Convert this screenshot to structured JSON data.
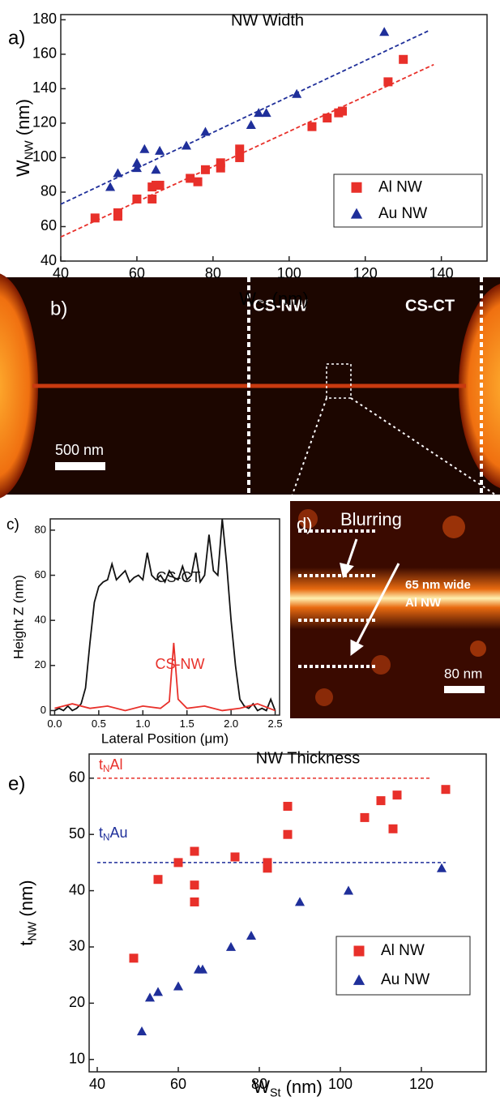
{
  "chart_data": [
    {
      "type": "scatter",
      "panel_label": "a)",
      "title": "NW Width",
      "xlabel": {
        "text": "W",
        "sub": "St",
        "rest": " (nm)"
      },
      "ylabel": {
        "text": "W",
        "sub": "NW",
        "rest": " (nm)"
      },
      "xlim": [
        40,
        152
      ],
      "ylim": [
        40,
        183
      ],
      "xticks": [
        40,
        60,
        80,
        100,
        120,
        140
      ],
      "yticks": [
        40,
        60,
        80,
        100,
        120,
        140,
        160,
        180
      ],
      "legend": "lower right",
      "grid": false,
      "series": [
        {
          "name": "Al NW",
          "color": "#e8302a",
          "marker": "square",
          "x": [
            49,
            55,
            55,
            60,
            64,
            64,
            65,
            66,
            74,
            76,
            78,
            82,
            82,
            87,
            87,
            106,
            110,
            113,
            114,
            126,
            130
          ],
          "values": [
            65,
            66,
            68,
            76,
            76,
            83,
            84,
            84,
            88,
            86,
            93,
            94,
            97,
            100,
            105,
            118,
            123,
            126,
            127,
            144,
            157
          ],
          "fit": {
            "x": [
              40,
              138
            ],
            "values": [
              54,
              154
            ]
          }
        },
        {
          "name": "Au NW",
          "color": "#1f2f9a",
          "marker": "triangle",
          "x": [
            53,
            55,
            60,
            60,
            62,
            65,
            66,
            73,
            78,
            90,
            92,
            94,
            102,
            125
          ],
          "values": [
            83,
            91,
            94,
            97,
            105,
            93,
            104,
            107,
            115,
            119,
            126,
            126,
            137,
            173
          ],
          "fit": {
            "x": [
              40,
              137
            ],
            "values": [
              73,
              174
            ]
          }
        }
      ]
    },
    {
      "type": "line",
      "panel_label": "c)",
      "xlabel": "Lateral Position (μm)",
      "ylabel": "Height Z (nm)",
      "xlim": [
        -0.05,
        2.55
      ],
      "ylim": [
        -2,
        85
      ],
      "xticks": [
        {
          "value": 0,
          "label": "0.0"
        },
        0.5,
        {
          "value": 1,
          "label": "1.0"
        },
        1.5,
        {
          "value": 2,
          "label": "2.0"
        },
        2.5
      ],
      "yticks": [
        0,
        20,
        40,
        60,
        80
      ],
      "legend": "none",
      "grid": false,
      "series": [
        {
          "name": "CS-CT",
          "color": "#111111",
          "x": [
            0,
            0.05,
            0.1,
            0.15,
            0.2,
            0.25,
            0.3,
            0.35,
            0.4,
            0.45,
            0.5,
            0.55,
            0.6,
            0.65,
            0.7,
            0.75,
            0.8,
            0.85,
            0.9,
            0.95,
            1,
            1.05,
            1.1,
            1.15,
            1.2,
            1.25,
            1.3,
            1.35,
            1.4,
            1.45,
            1.5,
            1.55,
            1.6,
            1.65,
            1.7,
            1.75,
            1.8,
            1.85,
            1.9,
            1.95,
            2,
            2.05,
            2.1,
            2.15,
            2.2,
            2.25,
            2.3,
            2.35,
            2.4,
            2.45,
            2.5
          ],
          "values": [
            0,
            1,
            0,
            2,
            0,
            1,
            3,
            10,
            30,
            48,
            55,
            57,
            58,
            65,
            58,
            60,
            62,
            57,
            59,
            60,
            58,
            70,
            60,
            58,
            60,
            57,
            62,
            59,
            58,
            64,
            58,
            60,
            70,
            57,
            60,
            78,
            62,
            60,
            85,
            65,
            40,
            20,
            5,
            2,
            1,
            3,
            0,
            1,
            0,
            5,
            0
          ]
        },
        {
          "name": "CS-NW",
          "color": "#e8302a",
          "x": [
            0,
            0.2,
            0.4,
            0.6,
            0.8,
            1,
            1.2,
            1.3,
            1.35,
            1.4,
            1.5,
            1.7,
            1.9,
            2.1,
            2.3,
            2.5
          ],
          "values": [
            1,
            3,
            1,
            2,
            0,
            2,
            1,
            4,
            30,
            5,
            1,
            2,
            0,
            1,
            3,
            0
          ]
        }
      ]
    },
    {
      "type": "scatter",
      "panel_label": "e)",
      "title": "NW Thickness",
      "xlabel": {
        "text": "W",
        "sub": "St",
        "rest": " (nm)"
      },
      "ylabel": {
        "text": "t",
        "sub": "NW",
        "rest": " (nm)"
      },
      "xlim": [
        38,
        136
      ],
      "ylim": [
        7.8,
        64.3
      ],
      "xticks": [
        40,
        60,
        80,
        100,
        120
      ],
      "yticks": [
        10,
        20,
        30,
        40,
        50,
        60
      ],
      "legend": "lower right",
      "grid": false,
      "reference_lines": [
        {
          "name": {
            "text": "t",
            "sub": "N",
            "rest": "Al"
          },
          "color": "#e8302a",
          "y": 60,
          "x": [
            40,
            122
          ]
        },
        {
          "name": {
            "text": "t",
            "sub": "N",
            "rest": "Au"
          },
          "color": "#1f2f9a",
          "y": 45,
          "x": [
            40,
            126
          ]
        }
      ],
      "series": [
        {
          "name": "Al NW",
          "color": "#e8302a",
          "marker": "square",
          "x": [
            49,
            55,
            60,
            64,
            64,
            64,
            74,
            82,
            82,
            87,
            87,
            106,
            110,
            113,
            114,
            126
          ],
          "values": [
            28,
            42,
            45,
            47,
            41,
            38,
            46,
            45,
            44,
            55,
            50,
            53,
            56,
            51,
            57,
            58
          ]
        },
        {
          "name": "Au NW",
          "color": "#1f2f9a",
          "marker": "triangle",
          "x": [
            51,
            53,
            55,
            60,
            65,
            66,
            73,
            78,
            90,
            102,
            125
          ],
          "values": [
            15,
            21,
            22,
            23,
            26,
            26,
            30,
            32,
            38,
            40,
            44
          ]
        }
      ]
    }
  ],
  "panels": {
    "b": {
      "label": "b)",
      "markers": [
        "CS-NW",
        "CS-CT"
      ],
      "scale_bar": "500 nm"
    },
    "d": {
      "label": "d)",
      "annotation": "Blurring",
      "caption": [
        "65 nm wide",
        "Al NW"
      ],
      "scale_bar": "80 nm"
    }
  }
}
